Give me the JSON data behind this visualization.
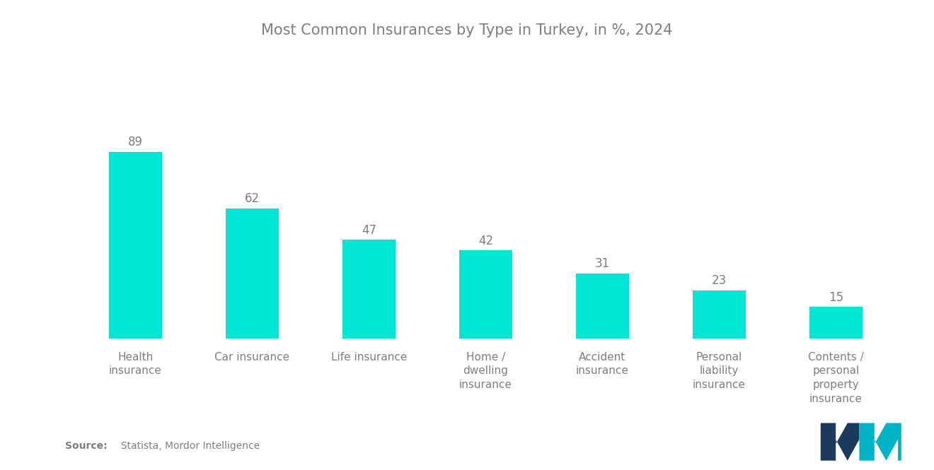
{
  "title": "Most Common Insurances by Type in Turkey, in %, 2024",
  "categories": [
    "Health\ninsurance",
    "Car insurance",
    "Life insurance",
    "Home /\ndwelling\ninsurance",
    "Accident\ninsurance",
    "Personal\nliability\ninsurance",
    "Contents /\npersonal\nproperty\ninsurance"
  ],
  "values": [
    89,
    62,
    47,
    42,
    31,
    23,
    15
  ],
  "bar_color": "#00E5D4",
  "value_color": "#7f7f7f",
  "title_color": "#7f7f7f",
  "label_color": "#7f7f7f",
  "source_bold": "Source:",
  "source_rest": "  Statista, Mordor Intelligence",
  "background_color": "#ffffff",
  "ylim": [
    0,
    130
  ],
  "title_fontsize": 15,
  "label_fontsize": 11,
  "value_fontsize": 12,
  "bar_width": 0.45,
  "logo_navy": "#1B3A5C",
  "logo_teal": "#00B4C8"
}
